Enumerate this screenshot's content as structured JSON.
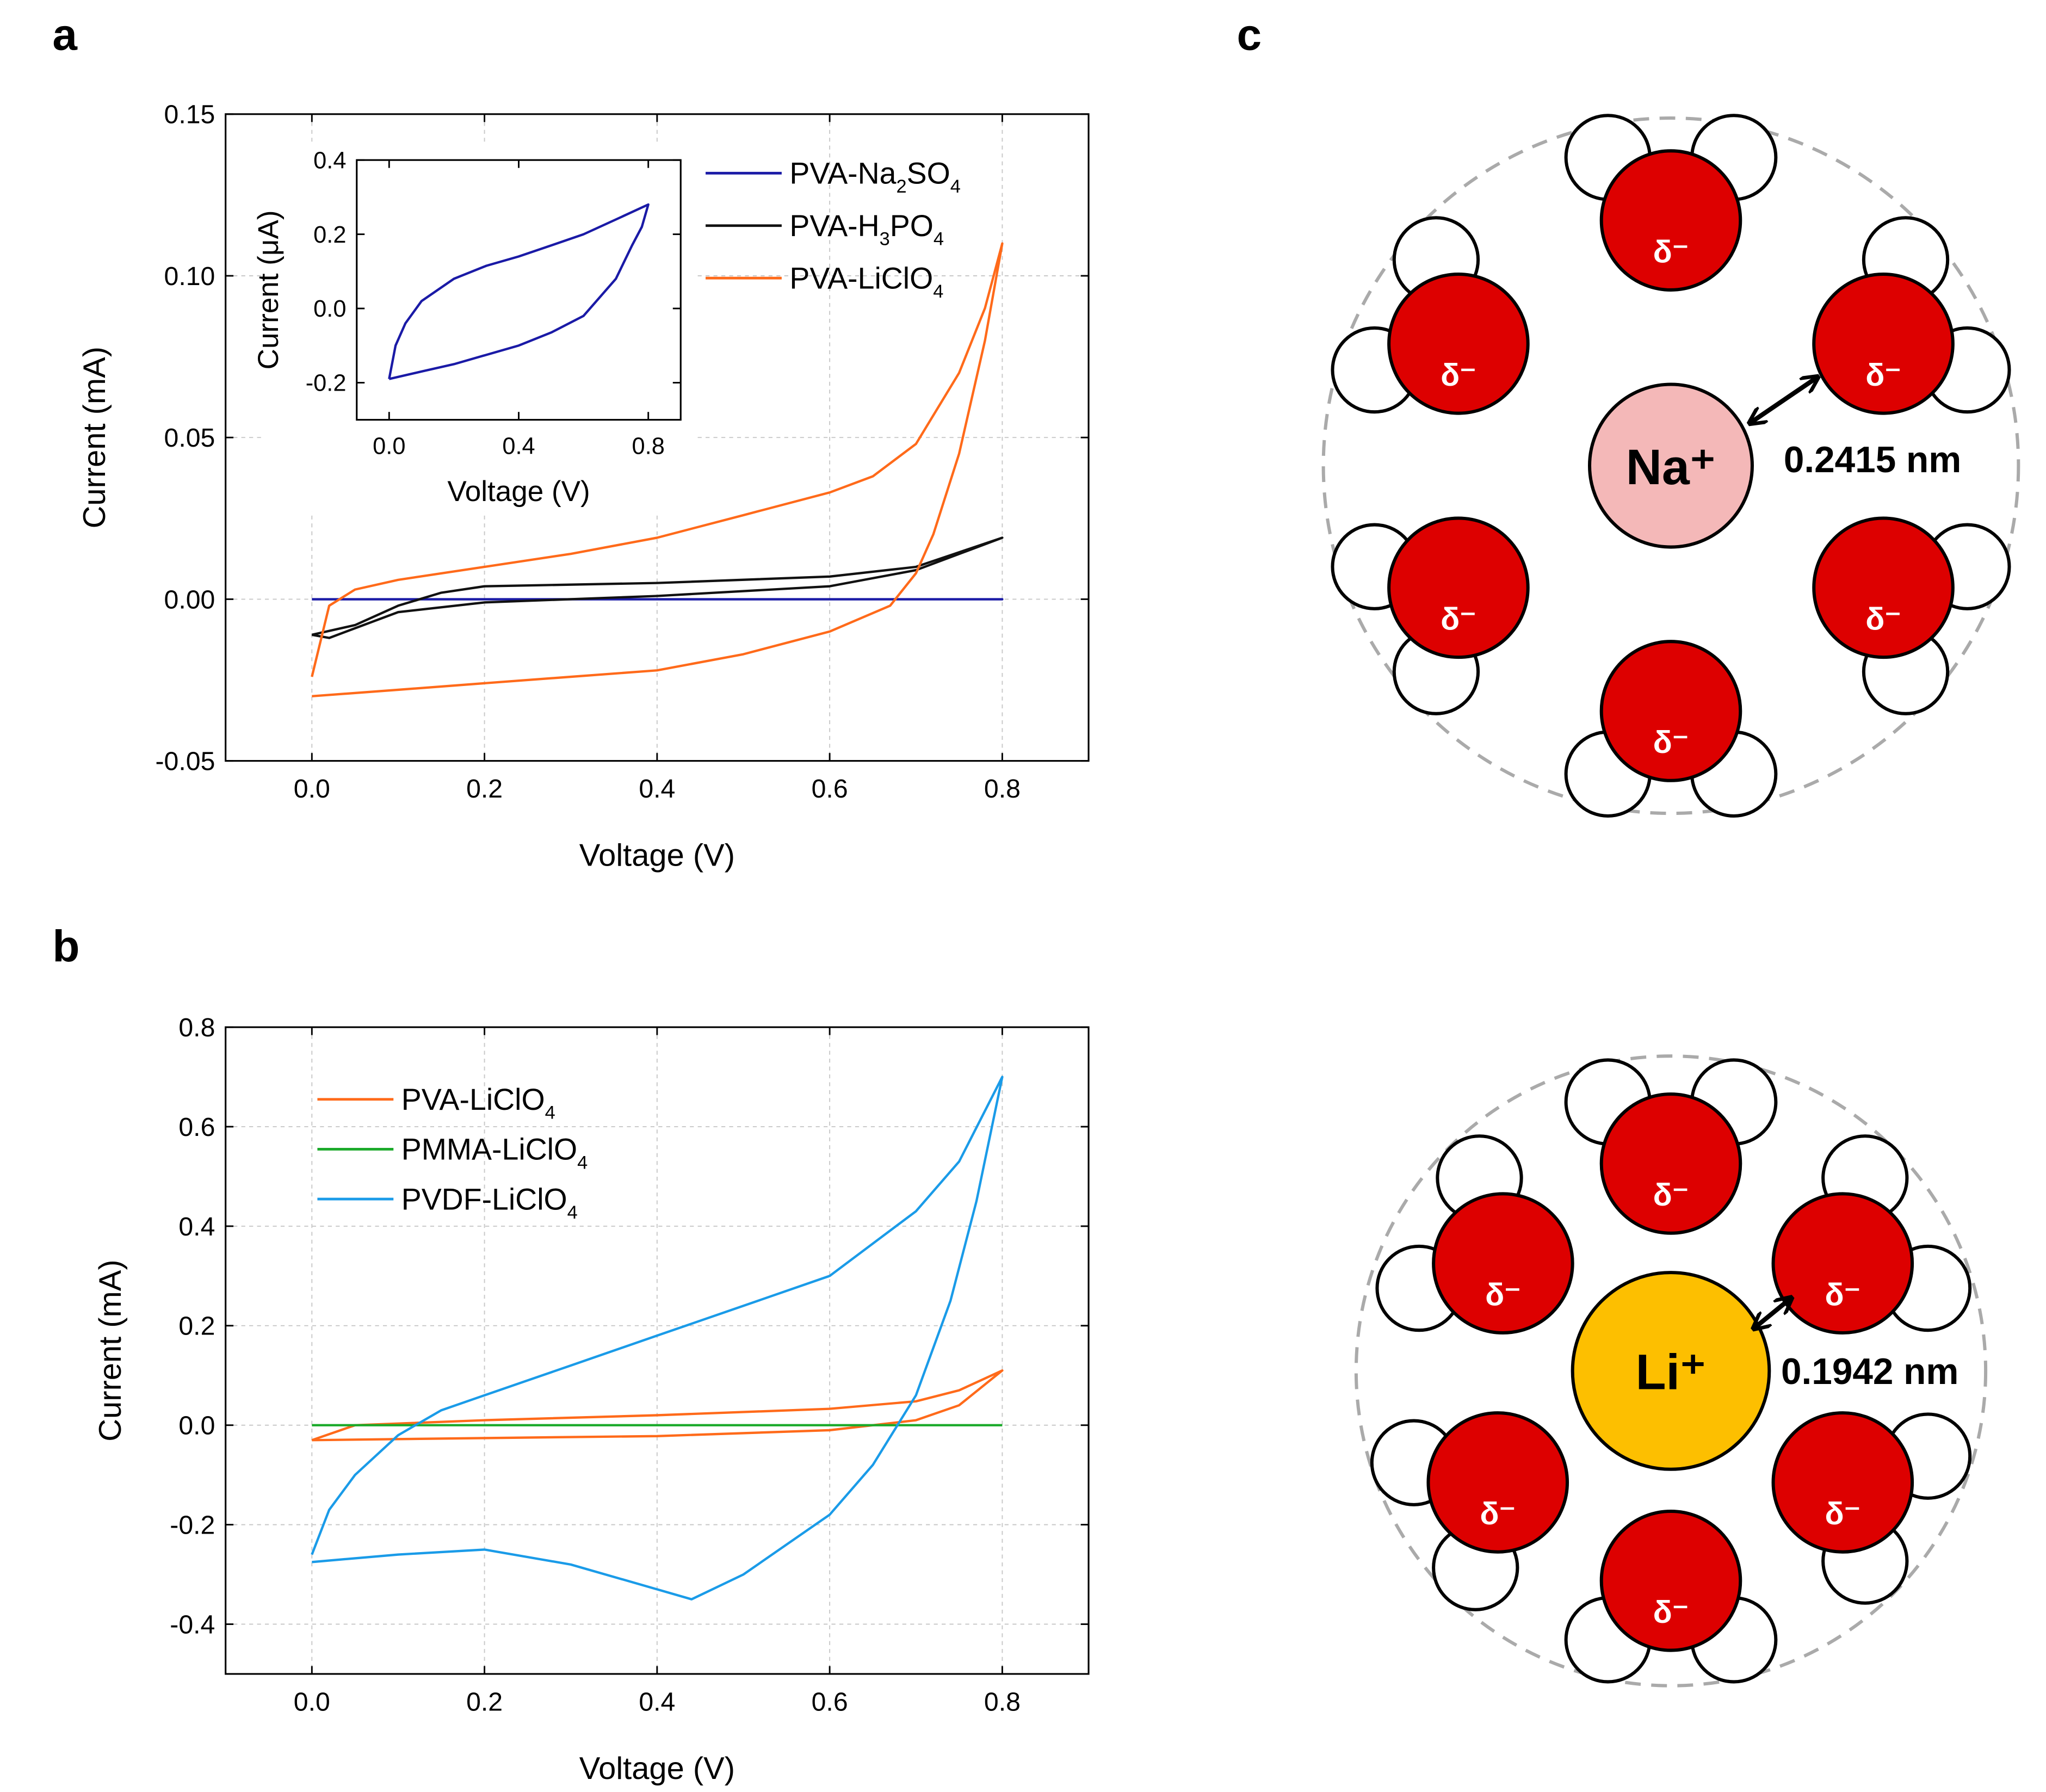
{
  "panel_labels": {
    "a": "a",
    "b": "b",
    "c": "c"
  },
  "chart_data": [
    {
      "id": "a",
      "type": "line",
      "xlabel": "Voltage (V)",
      "ylabel": "Current (mA)",
      "xlim": [
        -0.1,
        0.9
      ],
      "ylim": [
        -0.05,
        0.15
      ],
      "xticks": [
        0.0,
        0.2,
        0.4,
        0.6,
        0.8
      ],
      "xtick_labels": [
        "0.0",
        "0.2",
        "0.4",
        "0.6",
        "0.8"
      ],
      "yticks": [
        -0.05,
        0.0,
        0.05,
        0.1,
        0.15
      ],
      "ytick_labels": [
        "-0.05",
        "0.00",
        "0.05",
        "0.10",
        "0.15"
      ],
      "grid": true,
      "legend_position": "top-right",
      "series": [
        {
          "name": "PVA-Na2SO4",
          "color": "#1a1aa6",
          "x": [
            0,
            0.8,
            0
          ],
          "y": [
            0,
            0,
            0
          ]
        },
        {
          "name": "PVA-H3PO4",
          "color": "#111111",
          "x": [
            0,
            0.05,
            0.1,
            0.15,
            0.2,
            0.4,
            0.6,
            0.7,
            0.8,
            0.7,
            0.6,
            0.4,
            0.2,
            0.1,
            0.05,
            0.02,
            0
          ],
          "y": [
            -0.011,
            -0.008,
            -0.002,
            0.002,
            0.004,
            0.005,
            0.007,
            0.01,
            0.019,
            0.009,
            0.004,
            0.001,
            -0.001,
            -0.004,
            -0.009,
            -0.012,
            -0.011
          ]
        },
        {
          "name": "PVA-LiClO4",
          "color": "#ff6a1a",
          "x": [
            0,
            0.02,
            0.05,
            0.1,
            0.2,
            0.3,
            0.4,
            0.5,
            0.6,
            0.65,
            0.7,
            0.75,
            0.78,
            0.8,
            0.78,
            0.75,
            0.72,
            0.7,
            0.67,
            0.6,
            0.5,
            0.4,
            0.3,
            0.2,
            0.1,
            0
          ],
          "y": [
            -0.024,
            -0.002,
            0.003,
            0.006,
            0.01,
            0.014,
            0.019,
            0.026,
            0.033,
            0.038,
            0.048,
            0.07,
            0.09,
            0.11,
            0.08,
            0.045,
            0.02,
            0.008,
            -0.002,
            -0.01,
            -0.017,
            -0.022,
            -0.024,
            -0.026,
            -0.028,
            -0.03
          ]
        }
      ],
      "inset": {
        "xlabel": "Voltage (V)",
        "ylabel": "Current (μA)",
        "xlim": [
          -0.1,
          0.9
        ],
        "ylim": [
          -0.3,
          0.4
        ],
        "xticks": [
          0.0,
          0.4,
          0.8
        ],
        "xtick_labels": [
          "0.0",
          "0.4",
          "0.8"
        ],
        "yticks": [
          -0.2,
          0.0,
          0.2,
          0.4
        ],
        "ytick_labels": [
          "-0.2",
          "0.0",
          "0.2",
          "0.4"
        ],
        "series": [
          {
            "name": "PVA-Na2SO4",
            "color": "#1a1aa6",
            "x": [
              0,
              0.02,
              0.05,
              0.1,
              0.2,
              0.3,
              0.4,
              0.5,
              0.6,
              0.7,
              0.8,
              0.78,
              0.75,
              0.7,
              0.6,
              0.5,
              0.4,
              0.3,
              0.2,
              0.1,
              0
            ],
            "y": [
              -0.19,
              -0.1,
              -0.04,
              0.02,
              0.08,
              0.115,
              0.14,
              0.17,
              0.2,
              0.24,
              0.28,
              0.22,
              0.17,
              0.08,
              -0.02,
              -0.065,
              -0.1,
              -0.125,
              -0.15,
              -0.17,
              -0.19
            ]
          }
        ]
      }
    },
    {
      "id": "b",
      "type": "line",
      "xlabel": "Voltage (V)",
      "ylabel": "Current (mA)",
      "xlim": [
        -0.1,
        0.9
      ],
      "ylim": [
        -0.5,
        0.8
      ],
      "xticks": [
        0.0,
        0.2,
        0.4,
        0.6,
        0.8
      ],
      "xtick_labels": [
        "0.0",
        "0.2",
        "0.4",
        "0.6",
        "0.8"
      ],
      "yticks": [
        -0.4,
        -0.2,
        0.0,
        0.2,
        0.4,
        0.6,
        0.8
      ],
      "ytick_labels": [
        "-0.4",
        "-0.2",
        "0.0",
        "0.2",
        "0.4",
        "0.6",
        "0.8"
      ],
      "grid": true,
      "legend_position": "top-left",
      "series": [
        {
          "name": "PVA-LiClO4",
          "color": "#ff6a1a",
          "x": [
            0,
            0.05,
            0.2,
            0.4,
            0.6,
            0.7,
            0.75,
            0.8,
            0.75,
            0.7,
            0.6,
            0.4,
            0.2,
            0,
            0
          ],
          "y": [
            -0.03,
            0.0,
            0.01,
            0.02,
            0.033,
            0.048,
            0.07,
            0.11,
            0.04,
            0.01,
            -0.01,
            -0.022,
            -0.026,
            -0.03,
            -0.03
          ]
        },
        {
          "name": "PMMA-LiClO4",
          "color": "#1aaa2a",
          "x": [
            0,
            0.8
          ],
          "y": [
            0,
            0
          ]
        },
        {
          "name": "PVDF-LiClO4",
          "color": "#1a9be8",
          "x": [
            0,
            0.02,
            0.05,
            0.1,
            0.15,
            0.2,
            0.3,
            0.4,
            0.5,
            0.6,
            0.7,
            0.75,
            0.8,
            0.77,
            0.74,
            0.7,
            0.65,
            0.6,
            0.5,
            0.44,
            0.4,
            0.3,
            0.2,
            0.1,
            0
          ],
          "y": [
            -0.26,
            -0.17,
            -0.1,
            -0.02,
            0.03,
            0.06,
            0.12,
            0.18,
            0.24,
            0.3,
            0.43,
            0.53,
            0.7,
            0.45,
            0.25,
            0.06,
            -0.08,
            -0.18,
            -0.3,
            -0.35,
            -0.33,
            -0.28,
            -0.25,
            -0.26,
            -0.275
          ]
        }
      ]
    }
  ],
  "diagram": {
    "oxygen_label": "δ⁻",
    "oxygen_color": "#dd0000",
    "na": {
      "label": "Na⁺",
      "color": "#f4b8b8",
      "distance": "0.2415 nm"
    },
    "li": {
      "label": "Li⁺",
      "color": "#fdbf00",
      "distance": "0.1942 nm"
    }
  }
}
